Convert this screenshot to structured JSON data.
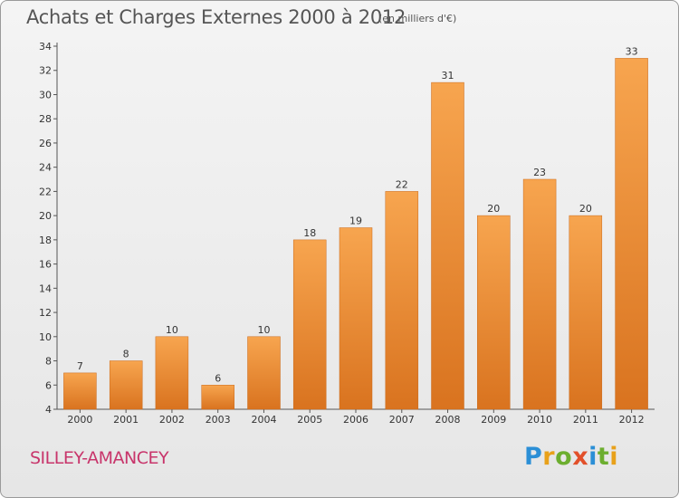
{
  "header": {
    "title": "Achats et Charges Externes 2000 à 2012",
    "subtitle": "(en milliers d'€)"
  },
  "footer": {
    "commune": "SILLEY-AMANCEY",
    "logo_text": "Proxiti"
  },
  "colors": {
    "bar_top": "#f7a54f",
    "bar_bottom": "#d9731f",
    "axis": "#555555",
    "grid": "#cccccc",
    "title": "#555555",
    "commune": "#c8356b"
  },
  "chart_data": {
    "type": "bar",
    "title": "Achats et Charges Externes 2000 à 2012",
    "subtitle": "(en milliers d'€)",
    "categories": [
      "2000",
      "2001",
      "2002",
      "2003",
      "2004",
      "2005",
      "2006",
      "2007",
      "2008",
      "2009",
      "2010",
      "2011",
      "2012"
    ],
    "values": [
      7,
      8,
      10,
      6,
      10,
      18,
      19,
      22,
      31,
      20,
      23,
      20,
      33
    ],
    "ylim": [
      4,
      34
    ],
    "yticks": [
      4,
      6,
      8,
      10,
      12,
      14,
      16,
      18,
      20,
      22,
      24,
      26,
      28,
      30,
      32,
      34
    ],
    "grid": false,
    "legend": "none",
    "data_labels": true
  }
}
